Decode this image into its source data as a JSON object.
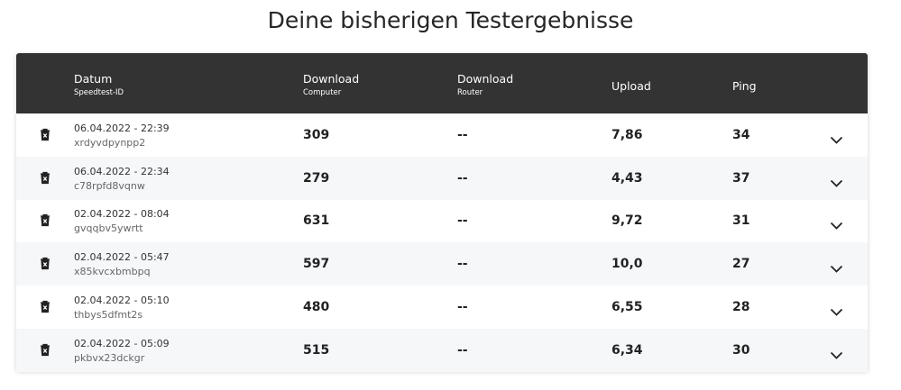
{
  "header": {
    "title": "Deine bisherigen Testergebnisse"
  },
  "table": {
    "columns": [
      {
        "label": "Datum",
        "sublabel": "Speedtest-ID"
      },
      {
        "label": "Download",
        "sublabel": "Computer"
      },
      {
        "label": "Download",
        "sublabel": "Router"
      },
      {
        "label": "Upload"
      },
      {
        "label": "Ping"
      }
    ],
    "rows": [
      [
        "06.04.2022 - 22:39",
        "xrdyvdpynpp2",
        "309",
        "--",
        "7,86",
        "34"
      ],
      [
        "06.04.2022 - 22:34",
        "c78rpfd8vqnw",
        "279",
        "--",
        "4,43",
        "37"
      ],
      [
        "02.04.2022 - 08:04",
        "gvqqbv5ywrtt",
        "631",
        "--",
        "9,72",
        "31"
      ],
      [
        "02.04.2022 - 05:47",
        "x85kvcxbmbpq",
        "597",
        "--",
        "10,0",
        "27"
      ],
      [
        "02.04.2022 - 05:10",
        "thbys5dfmt2s",
        "480",
        "--",
        "6,55",
        "28"
      ],
      [
        "02.04.2022 - 05:09",
        "pkbvx23dckgr",
        "515",
        "--",
        "6,34",
        "30"
      ]
    ]
  }
}
